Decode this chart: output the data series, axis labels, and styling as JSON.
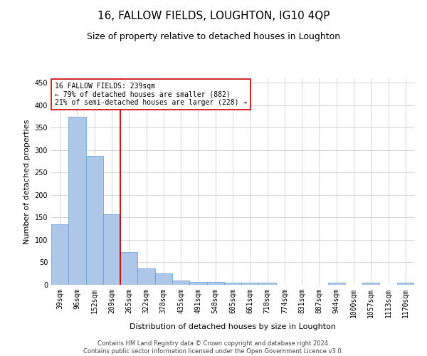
{
  "title": "16, FALLOW FIELDS, LOUGHTON, IG10 4QP",
  "subtitle": "Size of property relative to detached houses in Loughton",
  "xlabel": "Distribution of detached houses by size in Loughton",
  "ylabel": "Number of detached properties",
  "footer_line1": "Contains HM Land Registry data © Crown copyright and database right 2024.",
  "footer_line2": "Contains public sector information licensed under the Open Government Licence v3.0.",
  "bar_labels": [
    "39sqm",
    "96sqm",
    "152sqm",
    "209sqm",
    "265sqm",
    "322sqm",
    "378sqm",
    "435sqm",
    "491sqm",
    "548sqm",
    "605sqm",
    "661sqm",
    "718sqm",
    "774sqm",
    "831sqm",
    "887sqm",
    "944sqm",
    "1000sqm",
    "1057sqm",
    "1113sqm",
    "1170sqm"
  ],
  "bar_values": [
    135,
    375,
    287,
    157,
    73,
    37,
    25,
    10,
    7,
    6,
    4,
    4,
    4,
    0,
    0,
    0,
    4,
    0,
    4,
    0,
    4
  ],
  "bar_color": "#aec6e8",
  "bar_edge_color": "#5b9bd5",
  "annotation_text": "16 FALLOW FIELDS: 239sqm\n← 79% of detached houses are smaller (882)\n21% of semi-detached houses are larger (228) →",
  "vline_x_index": 3,
  "vline_color": "#cc0000",
  "annotation_box_color": "#ffffff",
  "annotation_box_edge": "#cc0000",
  "ylim": [
    0,
    460
  ],
  "yticks": [
    0,
    50,
    100,
    150,
    200,
    250,
    300,
    350,
    400,
    450
  ],
  "background_color": "#ffffff",
  "grid_color": "#d0d0d0",
  "title_fontsize": 11,
  "subtitle_fontsize": 9,
  "ylabel_fontsize": 8,
  "xlabel_fontsize": 8,
  "tick_fontsize": 7,
  "footer_fontsize": 6,
  "annotation_fontsize": 7
}
